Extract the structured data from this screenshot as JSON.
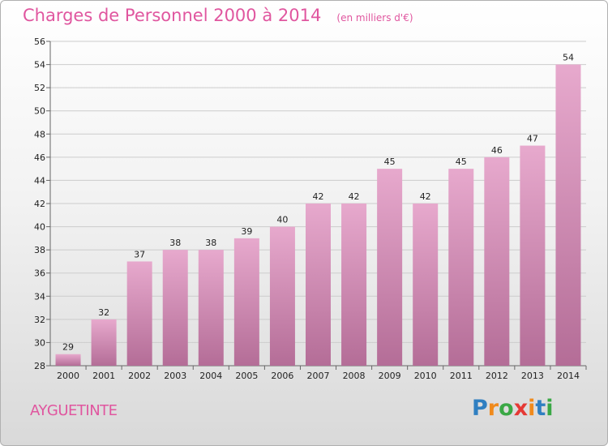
{
  "title": "Charges de Personnel 2000 à 2014",
  "subtitle": "(en milliers d'€)",
  "commune": "AYGUETINTE",
  "logo": {
    "letters": [
      "P",
      "r",
      "o",
      "x",
      "i",
      "t",
      "i"
    ],
    "colors": [
      "#2f7fc1",
      "#f08a1c",
      "#3aa845",
      "#e53935",
      "#f08a1c",
      "#2f7fc1",
      "#3aa845"
    ]
  },
  "colors": {
    "accent": "#e0569f",
    "bar_top": "#e7a9cd",
    "bar_bottom": "#b46d97",
    "grid": "#cccccc"
  },
  "chart_data": {
    "type": "bar",
    "title": "Charges de Personnel 2000 à 2014",
    "subtitle": "(en milliers d'€)",
    "xlabel": "",
    "ylabel": "",
    "categories": [
      "2000",
      "2001",
      "2002",
      "2003",
      "2004",
      "2005",
      "2006",
      "2007",
      "2008",
      "2009",
      "2010",
      "2011",
      "2012",
      "2013",
      "2014"
    ],
    "values": [
      29,
      32,
      37,
      38,
      38,
      39,
      40,
      42,
      42,
      45,
      42,
      45,
      46,
      47,
      54
    ],
    "ylim": [
      28,
      56
    ],
    "yticks": [
      28,
      30,
      32,
      34,
      36,
      38,
      40,
      42,
      44,
      46,
      48,
      50,
      52,
      54,
      56
    ],
    "grid": true,
    "legend": "none"
  }
}
